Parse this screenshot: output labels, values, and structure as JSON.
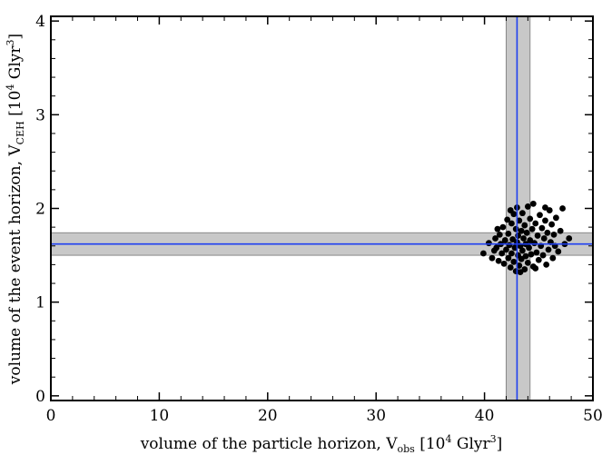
{
  "chart_data": {
    "type": "scatter",
    "title": "",
    "xlabel": "volume of the particle horizon, V",
    "xlabel_sub": "obs",
    "xlabel_unit_open": " [10",
    "xlabel_unit_exp": "4",
    "xlabel_unit_mid": " Glyr",
    "xlabel_unit_exp2": "3",
    "xlabel_unit_close": "]",
    "ylabel": "volume of the event horizon, V",
    "ylabel_sub": "CEH",
    "ylabel_unit_open": " [10",
    "ylabel_unit_exp": "4",
    "ylabel_unit_mid": " Glyr",
    "ylabel_unit_exp2": "3",
    "ylabel_unit_close": "]",
    "xlim": [
      0,
      50
    ],
    "ylim": [
      -0.05,
      4.05
    ],
    "xticks": [
      "0",
      "10",
      "20",
      "30",
      "40",
      "50"
    ],
    "yticks": [
      "0",
      "1",
      "2",
      "3",
      "4"
    ],
    "grid": false,
    "reference": {
      "x_mean": 43.0,
      "x_band": [
        42.0,
        44.2
      ],
      "y_mean": 1.62,
      "y_band": [
        1.5,
        1.74
      ],
      "line_color": "#1f3ff0",
      "band_color": "#c8c8c8"
    },
    "series": [
      {
        "marker_color": "#000000",
        "points": [
          [
            39.9,
            1.52
          ],
          [
            40.4,
            1.63
          ],
          [
            40.7,
            1.47
          ],
          [
            41.0,
            1.68
          ],
          [
            41.1,
            1.58
          ],
          [
            41.3,
            1.44
          ],
          [
            41.4,
            1.72
          ],
          [
            41.5,
            1.62
          ],
          [
            41.6,
            1.52
          ],
          [
            41.7,
            1.8
          ],
          [
            41.8,
            1.41
          ],
          [
            41.9,
            1.66
          ],
          [
            42.0,
            1.56
          ],
          [
            42.1,
            1.88
          ],
          [
            42.2,
            1.47
          ],
          [
            42.2,
            1.73
          ],
          [
            42.3,
            1.61
          ],
          [
            42.4,
            1.37
          ],
          [
            42.5,
            1.84
          ],
          [
            42.5,
            1.52
          ],
          [
            42.6,
            1.67
          ],
          [
            42.7,
            1.94
          ],
          [
            42.7,
            1.43
          ],
          [
            42.8,
            1.58
          ],
          [
            42.9,
            1.78
          ],
          [
            42.9,
            1.33
          ],
          [
            43.0,
            1.64
          ],
          [
            43.0,
            2.01
          ],
          [
            43.1,
            1.5
          ],
          [
            43.1,
            1.71
          ],
          [
            43.2,
            1.87
          ],
          [
            43.2,
            1.39
          ],
          [
            43.3,
            1.6
          ],
          [
            43.4,
            1.76
          ],
          [
            43.4,
            1.46
          ],
          [
            43.5,
            1.95
          ],
          [
            43.5,
            1.55
          ],
          [
            43.6,
            1.68
          ],
          [
            43.7,
            1.35
          ],
          [
            43.7,
            1.82
          ],
          [
            43.8,
            1.62
          ],
          [
            43.8,
            1.49
          ],
          [
            43.9,
            1.74
          ],
          [
            44.0,
            2.02
          ],
          [
            44.0,
            1.42
          ],
          [
            44.1,
            1.58
          ],
          [
            44.2,
            1.89
          ],
          [
            44.2,
            1.66
          ],
          [
            44.3,
            1.51
          ],
          [
            44.4,
            1.78
          ],
          [
            44.5,
            2.05
          ],
          [
            44.5,
            1.38
          ],
          [
            44.6,
            1.63
          ],
          [
            44.7,
            1.84
          ],
          [
            44.8,
            1.53
          ],
          [
            44.9,
            1.71
          ],
          [
            45.0,
            1.45
          ],
          [
            45.1,
            1.93
          ],
          [
            45.2,
            1.6
          ],
          [
            45.3,
            1.79
          ],
          [
            45.4,
            1.5
          ],
          [
            45.5,
            1.68
          ],
          [
            45.6,
            1.87
          ],
          [
            45.7,
            1.4
          ],
          [
            45.8,
            1.74
          ],
          [
            45.9,
            1.56
          ],
          [
            46.0,
            1.98
          ],
          [
            46.1,
            1.64
          ],
          [
            46.2,
            1.83
          ],
          [
            46.3,
            1.47
          ],
          [
            46.4,
            1.72
          ],
          [
            46.5,
            1.6
          ],
          [
            46.6,
            1.9
          ],
          [
            46.8,
            1.54
          ],
          [
            47.0,
            1.76
          ],
          [
            47.2,
            2.0
          ],
          [
            47.4,
            1.62
          ],
          [
            47.8,
            1.68
          ],
          [
            42.4,
            1.98
          ],
          [
            43.3,
            1.32
          ],
          [
            44.7,
            1.36
          ],
          [
            45.6,
            2.01
          ],
          [
            41.2,
            1.78
          ],
          [
            40.9,
            1.55
          ]
        ]
      }
    ]
  }
}
